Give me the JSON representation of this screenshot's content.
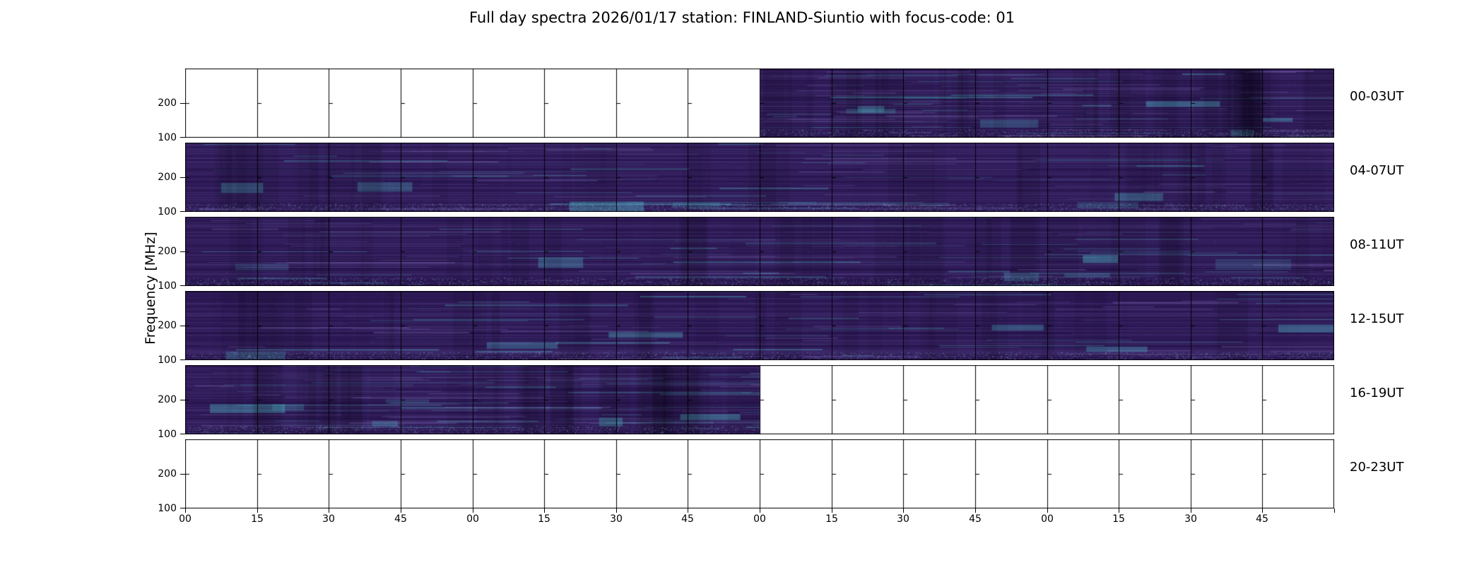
{
  "title": "Full day spectra 2026/01/17 station: FINLAND-Siuntio with focus-code: 01",
  "chart_data": {
    "type": "heatmap",
    "title": "Full day spectra 2026/01/17 station: FINLAND-Siuntio with focus-code: 01",
    "ylabel": "Frequency [MHz]",
    "y_tick_labels": [
      "200",
      "100"
    ],
    "x_tick_labels": [
      "00",
      "15",
      "30",
      "45",
      "00",
      "15",
      "30",
      "45",
      "00",
      "15",
      "30",
      "45",
      "00",
      "15",
      "30",
      "45"
    ],
    "panels_per_row": 16,
    "rows": [
      {
        "label": "00-03UT",
        "data_start_panel": 8,
        "data_end_panel": 16
      },
      {
        "label": "04-07UT",
        "data_start_panel": 0,
        "data_end_panel": 16
      },
      {
        "label": "08-11UT",
        "data_start_panel": 0,
        "data_end_panel": 16
      },
      {
        "label": "12-15UT",
        "data_start_panel": 0,
        "data_end_panel": 16
      },
      {
        "label": "16-19UT",
        "data_start_panel": 0,
        "data_end_panel": 8
      },
      {
        "label": "20-23UT",
        "data_start_panel": 0,
        "data_end_panel": 0
      }
    ],
    "colors": {
      "background": "#ffffff",
      "frame": "#000000",
      "spectrum_base": "#2d1956",
      "spectrum_light": "#8a7ac0",
      "spectrum_accent": "#50aabe"
    }
  }
}
